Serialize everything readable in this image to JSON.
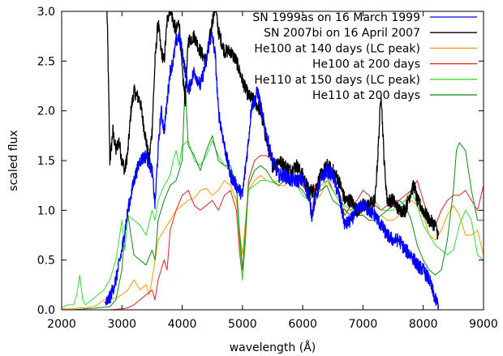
{
  "chart_data": {
    "type": "line",
    "xlabel": "wavelength (Å)",
    "ylabel": "scaled flux",
    "xlim": [
      2000,
      9000
    ],
    "ylim": [
      0.0,
      3.0
    ],
    "xticks": [
      "2000",
      "3000",
      "4000",
      "5000",
      "6000",
      "7000",
      "8000",
      "9000"
    ],
    "yticks": [
      "0.0",
      "0.5",
      "1.0",
      "1.5",
      "2.0",
      "2.5",
      "3.0"
    ],
    "grid": false,
    "legend_position": "top-right",
    "series": [
      {
        "name": "SN 1999as on 16 March 1999",
        "color": "#0000ff",
        "noise": 0.07,
        "x": [
          2720,
          2800,
          2900,
          3000,
          3100,
          3200,
          3300,
          3400,
          3500,
          3550,
          3600,
          3650,
          3700,
          3750,
          3800,
          3850,
          3900,
          3950,
          4000,
          4050,
          4100,
          4150,
          4200,
          4300,
          4400,
          4450,
          4500,
          4550,
          4600,
          4700,
          4800,
          4900,
          5000,
          5100,
          5150,
          5200,
          5250,
          5300,
          5400,
          5500,
          5600,
          5700,
          5800,
          5900,
          6000,
          6100,
          6150,
          6200,
          6300,
          6400,
          6500,
          6600,
          6700,
          6800,
          6900,
          7000,
          7100,
          7200,
          7300,
          7400,
          7500,
          7600,
          7700,
          7800,
          7900,
          8000,
          8100,
          8200,
          8250
        ],
        "y": [
          0.05,
          0.12,
          0.3,
          0.6,
          1.0,
          1.3,
          1.5,
          1.55,
          1.4,
          1.05,
          1.6,
          2.0,
          1.8,
          2.1,
          2.4,
          2.5,
          2.7,
          2.75,
          2.6,
          2.4,
          2.2,
          2.3,
          2.4,
          2.25,
          2.5,
          2.7,
          2.75,
          2.55,
          2.0,
          1.65,
          1.35,
          1.25,
          1.15,
          1.7,
          2.05,
          2.1,
          2.2,
          2.05,
          1.75,
          1.5,
          1.35,
          1.35,
          1.3,
          1.3,
          1.3,
          1.15,
          0.95,
          1.1,
          1.3,
          1.4,
          1.35,
          1.15,
          0.85,
          0.9,
          1.0,
          1.05,
          1.0,
          0.95,
          0.85,
          0.75,
          0.7,
          0.7,
          0.6,
          0.55,
          0.45,
          0.4,
          0.3,
          0.1,
          0.05
        ]
      },
      {
        "name": "SN 2007bi on 16 April 2007",
        "color": "#000000",
        "noise": 0.07,
        "x": [
          2750,
          2760,
          2780,
          2800,
          2820,
          2850,
          2900,
          2950,
          3000,
          3050,
          3100,
          3150,
          3200,
          3300,
          3400,
          3450,
          3500,
          3550,
          3600,
          3650,
          3700,
          3750,
          3800,
          3850,
          3900,
          3950,
          4000,
          4050,
          4100,
          4200,
          4300,
          4400,
          4500,
          4550,
          4600,
          4700,
          4800,
          4900,
          5000,
          5100,
          5200,
          5300,
          5400,
          5500,
          5600,
          5700,
          5800,
          5900,
          6000,
          6100,
          6200,
          6300,
          6400,
          6500,
          6600,
          6700,
          6800,
          6900,
          7000,
          7100,
          7200,
          7250,
          7300,
          7350,
          7400,
          7500,
          7600,
          7700,
          7800,
          7850,
          7900,
          8000,
          8100,
          8200,
          8250
        ],
        "y": [
          3.05,
          2.8,
          2.2,
          1.5,
          1.6,
          1.8,
          1.6,
          1.7,
          1.5,
          1.4,
          1.6,
          2.0,
          2.2,
          2.1,
          1.7,
          1.5,
          1.8,
          2.5,
          2.9,
          2.6,
          2.5,
          2.9,
          3.05,
          2.9,
          2.8,
          2.9,
          2.4,
          2.1,
          2.7,
          2.75,
          2.6,
          2.5,
          2.9,
          3.05,
          2.8,
          2.6,
          2.6,
          2.5,
          2.3,
          2.15,
          2.1,
          2.0,
          1.7,
          1.45,
          1.5,
          1.45,
          1.4,
          1.45,
          1.35,
          1.2,
          1.2,
          1.35,
          1.45,
          1.4,
          1.3,
          1.1,
          1.1,
          1.0,
          1.05,
          1.05,
          1.1,
          1.6,
          2.2,
          1.5,
          1.1,
          1.1,
          1.0,
          1.0,
          1.2,
          1.25,
          1.1,
          1.0,
          0.9,
          0.85,
          0.75
        ]
      },
      {
        "name": "He100 at 140 days (LC peak)",
        "color": "#ff9900",
        "noise": 0,
        "x": [
          2000,
          2100,
          2200,
          2300,
          2400,
          2500,
          2600,
          2700,
          2800,
          2900,
          3000,
          3100,
          3200,
          3300,
          3400,
          3450,
          3500,
          3600,
          3700,
          3800,
          3900,
          4000,
          4100,
          4200,
          4300,
          4400,
          4500,
          4600,
          4700,
          4800,
          4900,
          4950,
          5000,
          5050,
          5100,
          5200,
          5300,
          5400,
          5500,
          5600,
          5700,
          5800,
          5900,
          6000,
          6100,
          6200,
          6300,
          6400,
          6500,
          6600,
          6700,
          6800,
          6900,
          7000,
          7100,
          7200,
          7300,
          7400,
          7500,
          7600,
          7700,
          7800,
          7900,
          8000,
          8100,
          8200,
          8300,
          8400,
          8500,
          8600,
          8700,
          8800,
          8900,
          9000
        ],
        "y": [
          0.01,
          0.01,
          0.01,
          0.02,
          0.02,
          0.03,
          0.05,
          0.1,
          0.1,
          0.12,
          0.15,
          0.2,
          0.3,
          0.2,
          0.25,
          0.15,
          0.3,
          0.7,
          0.8,
          0.9,
          1.0,
          1.05,
          1.1,
          1.12,
          1.2,
          1.22,
          1.15,
          1.2,
          1.3,
          1.25,
          1.1,
          0.8,
          0.55,
          0.9,
          1.2,
          1.3,
          1.35,
          1.3,
          1.28,
          1.25,
          1.25,
          1.3,
          1.35,
          1.28,
          1.2,
          1.1,
          1.15,
          1.3,
          1.2,
          1.2,
          1.0,
          1.0,
          1.0,
          0.95,
          0.9,
          0.9,
          0.95,
          0.9,
          0.9,
          0.95,
          1.05,
          1.1,
          1.05,
          0.95,
          0.75,
          0.7,
          0.8,
          0.95,
          1.05,
          0.95,
          0.75,
          0.75,
          0.8,
          0.55
        ]
      },
      {
        "name": "He100 at 200 days",
        "color": "#dd2222",
        "noise": 0,
        "x": [
          2000,
          2200,
          2400,
          2600,
          2800,
          3000,
          3100,
          3200,
          3300,
          3400,
          3500,
          3550,
          3600,
          3700,
          3750,
          3800,
          3900,
          4000,
          4100,
          4200,
          4300,
          4400,
          4500,
          4600,
          4700,
          4800,
          4900,
          4950,
          5000,
          5050,
          5100,
          5200,
          5300,
          5400,
          5500,
          5600,
          5700,
          5800,
          5900,
          6000,
          6100,
          6150,
          6200,
          6300,
          6400,
          6500,
          6600,
          6700,
          6800,
          6900,
          7000,
          7100,
          7200,
          7300,
          7400,
          7500,
          7600,
          7700,
          7800,
          7900,
          8000,
          8100,
          8200,
          8300,
          8400,
          8500,
          8600,
          8700,
          8800,
          8900,
          9000
        ],
        "y": [
          0.0,
          0.0,
          0.0,
          0.0,
          0.0,
          0.01,
          0.02,
          0.05,
          0.1,
          0.15,
          0.2,
          0.1,
          0.3,
          0.5,
          0.4,
          0.8,
          1.0,
          1.15,
          1.2,
          1.05,
          1.0,
          1.05,
          1.1,
          1.0,
          1.15,
          1.2,
          1.0,
          0.6,
          0.3,
          0.7,
          1.3,
          1.5,
          1.55,
          1.55,
          1.5,
          1.42,
          1.35,
          1.38,
          1.3,
          1.25,
          1.15,
          0.9,
          1.25,
          1.3,
          1.35,
          1.2,
          1.1,
          0.95,
          1.05,
          1.1,
          1.2,
          1.15,
          1.05,
          1.0,
          1.05,
          1.1,
          1.1,
          1.15,
          1.2,
          1.3,
          1.1,
          0.9,
          0.85,
          1.0,
          1.1,
          1.15,
          1.15,
          1.2,
          1.1,
          1.0,
          1.25
        ]
      },
      {
        "name": "He110 at 150 days (LC peak)",
        "color": "#33dd33",
        "noise": 0,
        "x": [
          2000,
          2100,
          2200,
          2250,
          2300,
          2350,
          2400,
          2500,
          2600,
          2700,
          2800,
          2900,
          3000,
          3050,
          3100,
          3200,
          3300,
          3400,
          3500,
          3550,
          3600,
          3700,
          3800,
          3850,
          3900,
          3950,
          4000,
          4100,
          4200,
          4300,
          4400,
          4500,
          4600,
          4700,
          4800,
          4900,
          4950,
          5000,
          5050,
          5100,
          5200,
          5300,
          5400,
          5500,
          5600,
          5700,
          5800,
          5900,
          6000,
          6100,
          6200,
          6300,
          6400,
          6500,
          6600,
          6700,
          6800,
          6900,
          7000,
          7100,
          7200,
          7300,
          7400,
          7500,
          7600,
          7700,
          7800,
          7900,
          8000,
          8100,
          8200,
          8300,
          8400,
          8500,
          8600,
          8700,
          8800,
          8900,
          9000
        ],
        "y": [
          0.02,
          0.05,
          0.05,
          0.15,
          0.35,
          0.1,
          0.05,
          0.1,
          0.15,
          0.2,
          0.3,
          0.5,
          0.9,
          0.6,
          0.95,
          0.9,
          0.85,
          0.75,
          1.0,
          0.9,
          1.1,
          1.25,
          1.35,
          1.5,
          1.6,
          1.45,
          1.65,
          1.7,
          1.5,
          1.45,
          1.55,
          1.7,
          1.55,
          1.45,
          1.4,
          1.25,
          0.7,
          0.3,
          0.75,
          1.2,
          1.25,
          1.3,
          1.3,
          1.28,
          1.3,
          1.3,
          1.3,
          1.25,
          1.15,
          1.1,
          1.15,
          1.25,
          1.3,
          1.2,
          1.1,
          1.05,
          1.0,
          1.05,
          1.0,
          1.05,
          1.1,
          1.0,
          1.0,
          1.0,
          1.05,
          1.1,
          1.2,
          1.05,
          0.85,
          0.75,
          0.65,
          0.6,
          0.55,
          0.6,
          0.85,
          1.0,
          0.9,
          0.55,
          0.5
        ]
      },
      {
        "name": "He110 at 200 days",
        "color": "#118811",
        "noise": 0,
        "x": [
          2000,
          2200,
          2400,
          2600,
          2800,
          2900,
          3000,
          3050,
          3100,
          3200,
          3300,
          3400,
          3500,
          3550,
          3600,
          3700,
          3800,
          3900,
          4000,
          4050,
          4100,
          4200,
          4300,
          4400,
          4500,
          4600,
          4700,
          4800,
          4900,
          4950,
          5000,
          5050,
          5100,
          5200,
          5300,
          5400,
          5500,
          5600,
          5700,
          5800,
          5900,
          6000,
          6100,
          6200,
          6300,
          6400,
          6500,
          6600,
          6700,
          6800,
          6900,
          7000,
          7100,
          7200,
          7300,
          7400,
          7500,
          7600,
          7700,
          7800,
          7900,
          8000,
          8100,
          8200,
          8300,
          8400,
          8500,
          8550,
          8600,
          8700,
          8800,
          8900,
          9000
        ],
        "y": [
          0.0,
          0.0,
          0.01,
          0.02,
          0.03,
          0.1,
          0.4,
          0.8,
          0.95,
          0.55,
          0.5,
          0.45,
          0.6,
          0.5,
          0.9,
          1.1,
          1.25,
          1.3,
          1.5,
          2.3,
          1.65,
          1.55,
          1.4,
          1.6,
          1.75,
          1.5,
          1.45,
          1.45,
          1.25,
          0.8,
          0.4,
          0.8,
          1.25,
          1.4,
          1.45,
          1.4,
          1.3,
          1.25,
          1.3,
          1.35,
          1.25,
          1.2,
          1.1,
          1.15,
          1.2,
          1.25,
          1.1,
          1.05,
          1.0,
          0.95,
          0.95,
          0.95,
          0.9,
          0.9,
          0.95,
          1.0,
          1.05,
          1.1,
          1.05,
          0.9,
          0.65,
          0.5,
          0.4,
          0.35,
          0.4,
          0.7,
          1.2,
          1.6,
          1.68,
          1.6,
          1.2,
          0.9,
          0.9
        ]
      }
    ]
  }
}
